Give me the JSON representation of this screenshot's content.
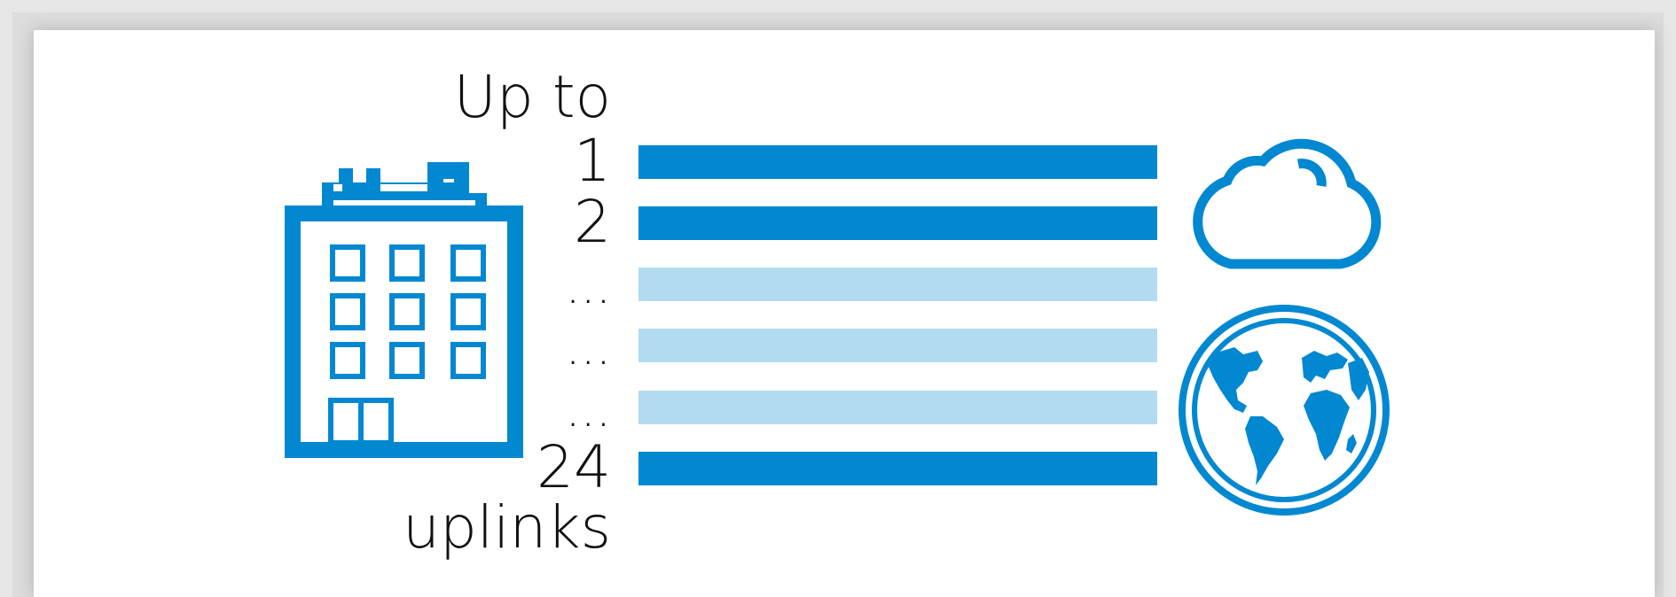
{
  "diagram": {
    "heading_top": "Up to",
    "heading_bottom": "uplinks",
    "rows": [
      {
        "label": "1",
        "style": "active"
      },
      {
        "label": "2",
        "style": "active"
      },
      {
        "label": "...",
        "style": "faded"
      },
      {
        "label": "...",
        "style": "faded"
      },
      {
        "label": "...",
        "style": "faded"
      },
      {
        "label": "24",
        "style": "active"
      }
    ],
    "icons": {
      "left": "building-icon",
      "right_top": "cloud-icon",
      "right_bottom": "globe-icon"
    }
  },
  "colors": {
    "primary": "#0288d1",
    "faded": "#b3dbef",
    "text": "#111111"
  }
}
